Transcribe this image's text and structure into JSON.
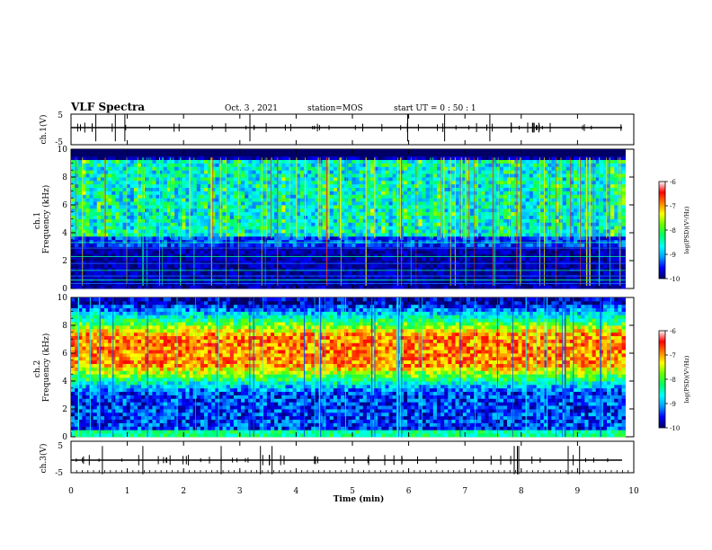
{
  "header": {
    "title": "VLF Spectra",
    "date": "Oct. 3  , 2021",
    "station": "station=MOS",
    "start": "start  UT  =   0 : 50 : 1"
  },
  "colorbar": {
    "label": "log(PSD)(V²/Hz)",
    "ticks": [
      "-6",
      "-7",
      "-8",
      "-9",
      "-10"
    ],
    "stops": [
      "#000066",
      "#0000ff",
      "#00a0ff",
      "#00ffff",
      "#00ff66",
      "#66ff00",
      "#ffff00",
      "#ff8000",
      "#ff0000",
      "#ffffff"
    ]
  },
  "chart_data": [
    {
      "type": "line",
      "ylabel": "ch.1(V)",
      "yticks": [
        "5",
        "-5"
      ],
      "ylim": [
        -5,
        5
      ],
      "x": [
        0,
        10
      ],
      "y": [
        0,
        0
      ]
    },
    {
      "type": "heatmap",
      "ylabel": "ch.1\nFrequency (kHz)",
      "yticks": [
        "10",
        "8",
        "6",
        "4",
        "2",
        "0"
      ],
      "ylim": [
        0,
        10
      ],
      "xlim": [
        0,
        9.85
      ],
      "band_khz": [
        3.8,
        9.3
      ],
      "level_log_psd": -8.3,
      "noise_floor_log_psd": -9.8
    },
    {
      "type": "heatmap",
      "ylabel": "ch.2\nFrequency (kHz)",
      "yticks": [
        "10",
        "8",
        "6",
        "4",
        "2",
        "0"
      ],
      "ylim": [
        0,
        10
      ],
      "xlim": [
        0,
        9.85
      ],
      "band_khz": [
        4.5,
        8.0
      ],
      "level_log_psd": -6.9,
      "noise_floor_log_psd": -9.4
    },
    {
      "type": "line",
      "ylabel": "ch.3(V)",
      "yticks": [
        "5",
        "-5"
      ],
      "ylim": [
        -5,
        5
      ],
      "x": [
        0,
        10
      ],
      "y": [
        0,
        0
      ]
    }
  ],
  "xaxis": {
    "label": "Time  (min)",
    "ticks": [
      "0",
      "1",
      "2",
      "3",
      "4",
      "5",
      "6",
      "7",
      "8",
      "9",
      "10"
    ],
    "xlim": [
      0,
      10
    ]
  }
}
